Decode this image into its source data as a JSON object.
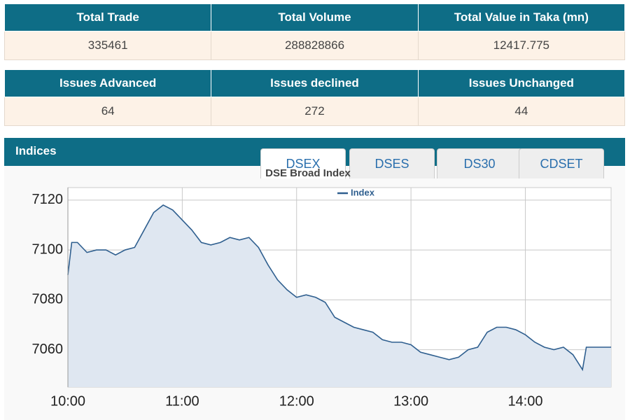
{
  "stats": {
    "headers": [
      "Total Trade",
      "Total Volume",
      "Total Value in Taka (mn)"
    ],
    "values": [
      335461,
      288828866,
      12417.775
    ]
  },
  "issues": {
    "headers": [
      "Issues Advanced",
      "Issues declined",
      "Issues Unchanged"
    ],
    "values": [
      64,
      272,
      44
    ]
  },
  "indices": {
    "title": "Indices",
    "tabs": [
      "DSEX",
      "DSES",
      "DS30",
      "CDSET"
    ]
  },
  "chart_data": {
    "type": "area",
    "title": "DSE Broad Index",
    "x": [
      "10:00",
      "10:02",
      "10:05",
      "10:10",
      "10:15",
      "10:20",
      "10:25",
      "10:30",
      "10:35",
      "10:40",
      "10:45",
      "10:50",
      "10:55",
      "11:00",
      "11:05",
      "11:10",
      "11:15",
      "11:20",
      "11:25",
      "11:30",
      "11:35",
      "11:40",
      "11:45",
      "11:50",
      "11:55",
      "12:00",
      "12:05",
      "12:10",
      "12:15",
      "12:20",
      "12:25",
      "12:30",
      "12:35",
      "12:40",
      "12:45",
      "12:50",
      "12:55",
      "13:00",
      "13:05",
      "13:10",
      "13:15",
      "13:20",
      "13:25",
      "13:30",
      "13:35",
      "13:40",
      "13:45",
      "13:50",
      "13:55",
      "14:00",
      "14:05",
      "14:10",
      "14:15",
      "14:20",
      "14:25",
      "14:30",
      "14:32",
      "14:45"
    ],
    "series": [
      {
        "name": "Index",
        "color": "#2f5f8f",
        "fill": "#dfe7f1",
        "values": [
          7090,
          7103,
          7103,
          7099,
          7100,
          7100,
          7098,
          7100,
          7101,
          7108,
          7115,
          7118,
          7116,
          7112,
          7108,
          7103,
          7102,
          7103,
          7105,
          7104,
          7105,
          7101,
          7094,
          7088,
          7084,
          7081,
          7082,
          7081,
          7079,
          7073,
          7071,
          7069,
          7068,
          7067,
          7064,
          7063,
          7063,
          7062,
          7059,
          7058,
          7057,
          7056,
          7057,
          7060,
          7061,
          7067,
          7069,
          7069,
          7068,
          7066,
          7063,
          7061,
          7060,
          7061,
          7058,
          7052,
          7061,
          7061
        ]
      }
    ],
    "xlim": [
      "10:00",
      "14:45"
    ],
    "xticks": [
      "10:00",
      "11:00",
      "12:00",
      "13:00",
      "14:00"
    ],
    "ylim": [
      7045,
      7125
    ],
    "yticks": [
      7060,
      7080,
      7100,
      7120
    ],
    "grid": true
  }
}
